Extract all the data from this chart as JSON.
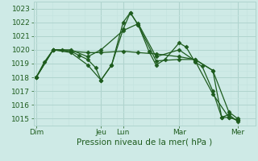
{
  "xlabel": "Pression niveau de la mer( hPa )",
  "bg_color": "#ceeae6",
  "grid_major_color": "#b0d4ce",
  "grid_minor_color": "#c4e4e0",
  "line_color": "#1e5c1e",
  "ylim": [
    1014.5,
    1023.5
  ],
  "yticks": [
    1015,
    1016,
    1017,
    1018,
    1019,
    1020,
    1021,
    1022,
    1023
  ],
  "xlim": [
    0,
    12.5
  ],
  "day_labels": [
    "Dim",
    "Jeu",
    "Lun",
    "Mar",
    "Mer"
  ],
  "day_positions": [
    0.15,
    3.8,
    5.05,
    8.2,
    11.5
  ],
  "vline_positions": [
    0.15,
    3.8,
    5.05,
    8.2,
    11.5
  ],
  "series1": [
    [
      0.15,
      1018.0
    ],
    [
      0.6,
      1019.1
    ],
    [
      1.1,
      1020.0
    ],
    [
      1.6,
      1020.0
    ],
    [
      2.1,
      1019.9
    ],
    [
      2.55,
      1019.6
    ],
    [
      3.05,
      1019.3
    ],
    [
      3.5,
      1018.7
    ],
    [
      3.8,
      1017.8
    ],
    [
      4.4,
      1018.9
    ],
    [
      5.05,
      1022.0
    ],
    [
      5.45,
      1022.7
    ],
    [
      5.9,
      1021.8
    ],
    [
      6.5,
      1019.9
    ],
    [
      6.9,
      1018.9
    ],
    [
      7.4,
      1019.3
    ],
    [
      8.2,
      1020.5
    ],
    [
      8.6,
      1020.2
    ],
    [
      9.1,
      1019.1
    ],
    [
      9.5,
      1018.8
    ],
    [
      10.1,
      1017.0
    ],
    [
      10.6,
      1015.1
    ],
    [
      11.0,
      1015.1
    ],
    [
      11.5,
      1014.9
    ]
  ],
  "series2": [
    [
      0.15,
      1018.0
    ],
    [
      1.1,
      1020.0
    ],
    [
      2.1,
      1020.0
    ],
    [
      3.05,
      1019.5
    ],
    [
      3.8,
      1020.0
    ],
    [
      5.05,
      1021.4
    ],
    [
      5.9,
      1021.9
    ],
    [
      6.9,
      1019.5
    ],
    [
      8.2,
      1020.0
    ],
    [
      9.1,
      1019.2
    ],
    [
      10.1,
      1016.8
    ],
    [
      11.0,
      1015.1
    ],
    [
      11.5,
      1014.9
    ]
  ],
  "series3": [
    [
      0.15,
      1018.0
    ],
    [
      1.1,
      1020.0
    ],
    [
      2.1,
      1019.8
    ],
    [
      3.05,
      1018.9
    ],
    [
      3.8,
      1017.8
    ],
    [
      4.4,
      1018.9
    ],
    [
      5.05,
      1021.5
    ],
    [
      5.45,
      1022.7
    ],
    [
      5.9,
      1021.8
    ],
    [
      6.9,
      1019.2
    ],
    [
      8.2,
      1019.3
    ],
    [
      9.1,
      1019.3
    ],
    [
      10.1,
      1018.5
    ],
    [
      10.6,
      1015.1
    ],
    [
      11.0,
      1015.3
    ],
    [
      11.5,
      1014.8
    ]
  ],
  "series4": [
    [
      0.15,
      1018.0
    ],
    [
      1.1,
      1020.0
    ],
    [
      2.1,
      1019.9
    ],
    [
      3.05,
      1019.8
    ],
    [
      3.8,
      1019.8
    ],
    [
      5.05,
      1019.9
    ],
    [
      5.9,
      1019.8
    ],
    [
      6.9,
      1019.7
    ],
    [
      8.2,
      1019.5
    ],
    [
      9.1,
      1019.3
    ],
    [
      10.1,
      1018.5
    ],
    [
      11.0,
      1015.5
    ],
    [
      11.5,
      1015.0
    ]
  ]
}
